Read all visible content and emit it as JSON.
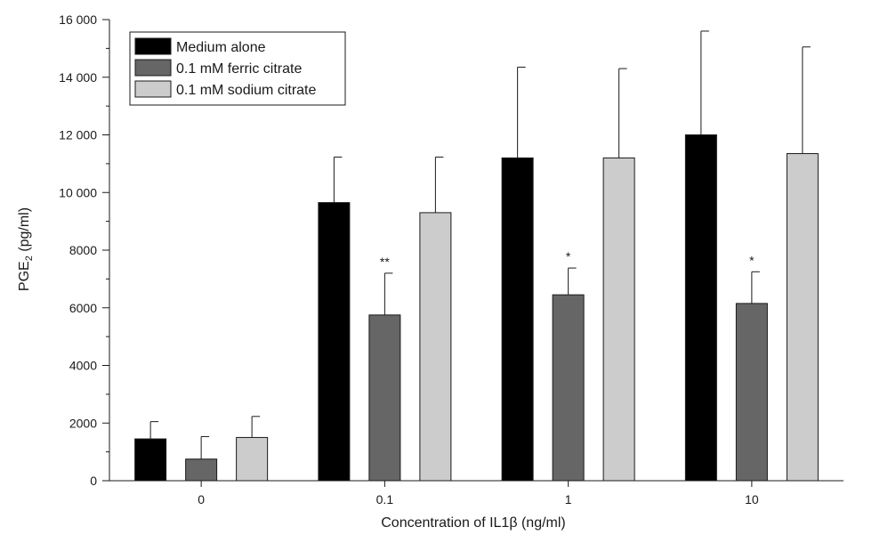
{
  "chart_data": {
    "type": "bar",
    "title": "",
    "xlabel": "Concentration of IL1β (ng/ml)",
    "ylabel_main": "PGE",
    "ylabel_sub": "2",
    "ylabel_unit": " (pg/ml)",
    "ylim": [
      0,
      16000
    ],
    "yticks": [
      {
        "value": 0,
        "label": "0"
      },
      {
        "value": 2000,
        "label": "2000"
      },
      {
        "value": 4000,
        "label": "4000"
      },
      {
        "value": 6000,
        "label": "6000"
      },
      {
        "value": 8000,
        "label": "8000"
      },
      {
        "value": 10000,
        "label": "10 000"
      },
      {
        "value": 12000,
        "label": "12 000"
      },
      {
        "value": 14000,
        "label": "14 000"
      },
      {
        "value": 16000,
        "label": "16 000"
      }
    ],
    "categories": [
      "0",
      "0.1",
      "1",
      "10"
    ],
    "series": [
      {
        "name": "Medium alone",
        "color": "#000000",
        "values": [
          1450,
          9650,
          11200,
          12000
        ],
        "errors": [
          600,
          1580,
          3150,
          3600
        ]
      },
      {
        "name": "0.1 mM ferric citrate",
        "color": "#666666",
        "values": [
          750,
          5750,
          6450,
          6150
        ],
        "errors": [
          780,
          1450,
          930,
          1100
        ]
      },
      {
        "name": "0.1 mM sodium citrate",
        "color": "#cccccc",
        "values": [
          1500,
          9300,
          11200,
          11350
        ],
        "errors": [
          730,
          1930,
          3100,
          3700
        ]
      }
    ],
    "annotations": [
      {
        "category": "0.1",
        "series": "0.1 mM ferric citrate",
        "text": "**"
      },
      {
        "category": "1",
        "series": "0.1 mM ferric citrate",
        "text": "*"
      },
      {
        "category": "10",
        "series": "0.1 mM ferric citrate",
        "text": "*"
      }
    ],
    "legend_position": "top-left",
    "grid": false
  }
}
